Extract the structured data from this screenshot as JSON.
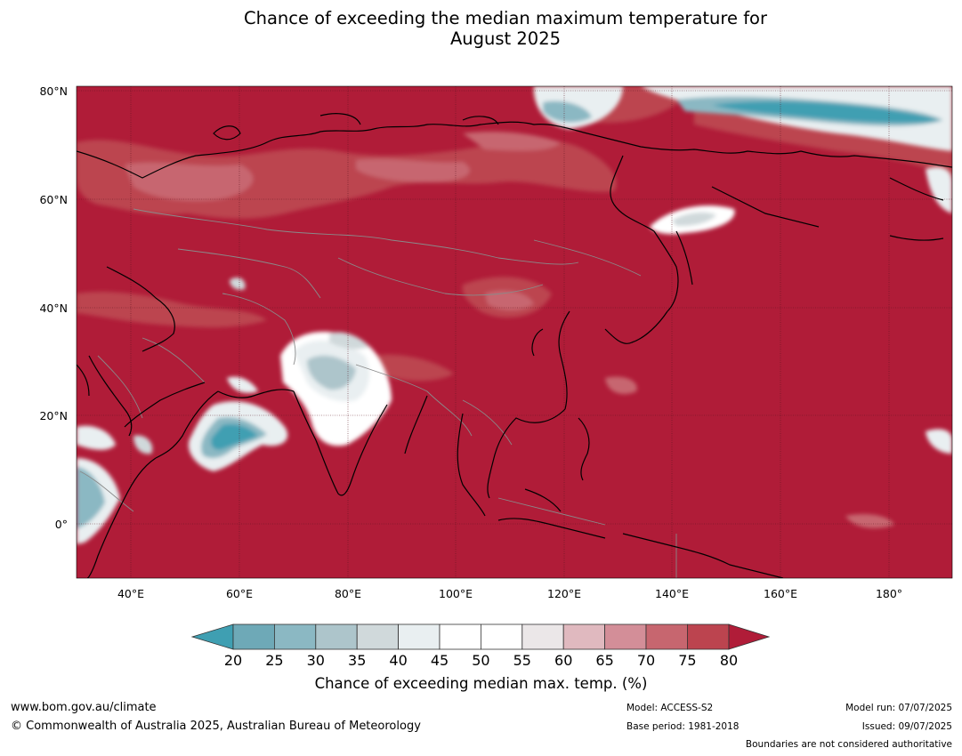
{
  "title": {
    "line1": "Chance of exceeding the median maximum temperature for",
    "line2": "August 2025"
  },
  "map": {
    "lat_labels": [
      "80°N",
      "60°N",
      "40°N",
      "20°N",
      "0°"
    ],
    "lon_labels": [
      "40°E",
      "60°E",
      "80°E",
      "100°E",
      "120°E",
      "140°E",
      "160°E",
      "180°"
    ],
    "lon_range": [
      30,
      192
    ],
    "lat_range": [
      -10,
      81
    ],
    "dominant_color": "#b01c38",
    "land_outline_color": "#000000",
    "border_color": "#808080"
  },
  "colorbar": {
    "ticks": [
      "20",
      "25",
      "30",
      "35",
      "40",
      "45",
      "50",
      "55",
      "60",
      "65",
      "70",
      "75",
      "80"
    ],
    "colors": [
      "#6ea9b7",
      "#8bb8c3",
      "#adc5cb",
      "#d0d9db",
      "#e9eff1",
      "#ffffff",
      "#ffffff",
      "#ebe7e8",
      "#e0b9bf",
      "#d38e98",
      "#c7666f",
      "#bc444f"
    ],
    "under_color": "#3f9fb2",
    "over_color": "#b01c38",
    "label": "Chance of exceeding median max. temp. (%)"
  },
  "footer": {
    "website": "www.bom.gov.au/climate",
    "copyright": "© Commonwealth of Australia 2025, Australian Bureau of Meteorology",
    "model": "Model: ACCESS-S2",
    "base_period": "Base period: 1981-2018",
    "model_run": "Model run: 07/07/2025",
    "issued": "Issued: 09/07/2025",
    "disclaimer": "Boundaries are not considered authoritative"
  }
}
